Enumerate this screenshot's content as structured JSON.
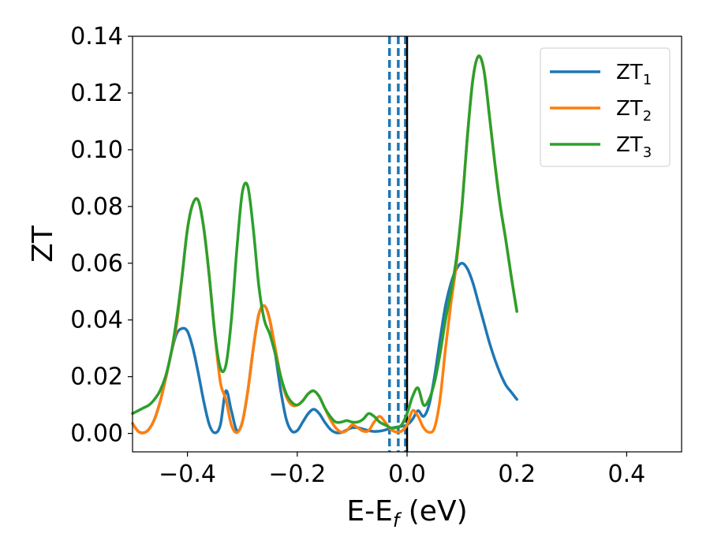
{
  "chart_data": {
    "type": "line",
    "title": "",
    "xlabel": "E-E",
    "xlabel_sub": "f",
    "xlabel_unit": " (eV)",
    "ylabel": "ZT",
    "xlim": [
      -0.5,
      0.5
    ],
    "ylim": [
      -0.0065,
      0.14
    ],
    "xticks": [
      -0.4,
      -0.2,
      0.0,
      0.2,
      0.4
    ],
    "xtick_labels": [
      "−0.4",
      "−0.2",
      "0.0",
      "0.2",
      "0.4"
    ],
    "yticks": [
      0.0,
      0.02,
      0.04,
      0.06,
      0.08,
      0.1,
      0.12,
      0.14
    ],
    "ytick_labels": [
      "0.00",
      "0.02",
      "0.04",
      "0.06",
      "0.08",
      "0.10",
      "0.12",
      "0.14"
    ],
    "legend_position": "top-right",
    "grid": false,
    "series": [
      {
        "name": "ZT",
        "name_sub": "1",
        "color": "#1f77b4",
        "x": [
          -0.5,
          -0.49,
          -0.48,
          -0.47,
          -0.46,
          -0.45,
          -0.44,
          -0.43,
          -0.42,
          -0.41,
          -0.4,
          -0.39,
          -0.38,
          -0.37,
          -0.36,
          -0.35,
          -0.34,
          -0.33,
          -0.32,
          -0.31,
          -0.3,
          -0.29,
          -0.28,
          -0.27,
          -0.26,
          -0.25,
          -0.24,
          -0.23,
          -0.22,
          -0.21,
          -0.2,
          -0.19,
          -0.18,
          -0.17,
          -0.16,
          -0.15,
          -0.14,
          -0.13,
          -0.12,
          -0.11,
          -0.1,
          -0.09,
          -0.08,
          -0.07,
          -0.06,
          -0.05,
          -0.04,
          -0.03,
          -0.02,
          -0.01,
          0.0,
          0.01,
          0.02,
          0.03,
          0.04,
          0.05,
          0.06,
          0.07,
          0.08,
          0.09,
          0.1,
          0.11,
          0.12,
          0.13,
          0.14,
          0.15,
          0.16,
          0.17,
          0.18,
          0.19,
          0.2
        ],
        "values": [
          0.0035,
          0.0008,
          0.0002,
          0.0015,
          0.005,
          0.011,
          0.019,
          0.028,
          0.035,
          0.037,
          0.036,
          0.03,
          0.021,
          0.011,
          0.003,
          0.0002,
          0.003,
          0.015,
          0.008,
          0.001,
          0.004,
          0.015,
          0.03,
          0.042,
          0.045,
          0.04,
          0.028,
          0.015,
          0.005,
          0.0008,
          0.001,
          0.004,
          0.007,
          0.0085,
          0.007,
          0.004,
          0.0015,
          0.0003,
          0.0003,
          0.0012,
          0.002,
          0.002,
          0.0015,
          0.001,
          0.0007,
          0.0008,
          0.0012,
          0.0018,
          0.0022,
          0.0025,
          0.003,
          0.005,
          0.008,
          0.006,
          0.01,
          0.02,
          0.033,
          0.045,
          0.053,
          0.058,
          0.06,
          0.058,
          0.053,
          0.046,
          0.039,
          0.032,
          0.026,
          0.021,
          0.017,
          0.0145,
          0.012
        ]
      },
      {
        "name": "ZT",
        "name_sub": "2",
        "color": "#ff7f0e",
        "x": [
          -0.5,
          -0.49,
          -0.48,
          -0.47,
          -0.46,
          -0.45,
          -0.44,
          -0.43,
          -0.42,
          -0.41,
          -0.4,
          -0.39,
          -0.38,
          -0.37,
          -0.36,
          -0.35,
          -0.34,
          -0.33,
          -0.32,
          -0.31,
          -0.3,
          -0.29,
          -0.28,
          -0.27,
          -0.26,
          -0.25,
          -0.24,
          -0.23,
          -0.22,
          -0.21,
          -0.2,
          -0.19,
          -0.18,
          -0.17,
          -0.16,
          -0.15,
          -0.14,
          -0.13,
          -0.12,
          -0.11,
          -0.1,
          -0.09,
          -0.08,
          -0.07,
          -0.06,
          -0.05,
          -0.04,
          -0.03,
          -0.02,
          -0.01,
          0.0,
          0.01,
          0.02,
          0.03,
          0.04,
          0.05,
          0.06,
          0.07,
          0.08,
          0.09,
          0.1,
          0.11,
          0.12,
          0.13,
          0.14,
          0.15,
          0.16,
          0.17,
          0.18,
          0.19,
          0.2
        ],
        "values": [
          0.0035,
          0.0008,
          0.0002,
          0.0015,
          0.005,
          0.011,
          0.019,
          0.028,
          0.038,
          0.055,
          0.072,
          0.081,
          0.082,
          0.072,
          0.055,
          0.035,
          0.018,
          0.012,
          0.003,
          0.0003,
          0.004,
          0.015,
          0.03,
          0.042,
          0.045,
          0.04,
          0.03,
          0.02,
          0.013,
          0.01,
          0.01,
          0.0115,
          0.014,
          0.015,
          0.013,
          0.009,
          0.005,
          0.002,
          0.0005,
          0.001,
          0.003,
          0.002,
          0.0008,
          0.001,
          0.004,
          0.006,
          0.004,
          0.0015,
          0.0005,
          0.0008,
          0.003,
          0.008,
          0.006,
          0.002,
          0.0004,
          0.002,
          0.012,
          0.03,
          0.046,
          0.06,
          0.08,
          0.105,
          0.125,
          0.133,
          0.128,
          0.112,
          0.095,
          0.08,
          0.068,
          0.055,
          0.043
        ]
      },
      {
        "name": "ZT",
        "name_sub": "3",
        "color": "#2ca02c",
        "x": [
          -0.5,
          -0.49,
          -0.48,
          -0.47,
          -0.46,
          -0.45,
          -0.44,
          -0.43,
          -0.42,
          -0.41,
          -0.4,
          -0.39,
          -0.38,
          -0.37,
          -0.36,
          -0.35,
          -0.34,
          -0.33,
          -0.32,
          -0.31,
          -0.3,
          -0.29,
          -0.28,
          -0.27,
          -0.26,
          -0.25,
          -0.24,
          -0.23,
          -0.22,
          -0.21,
          -0.2,
          -0.19,
          -0.18,
          -0.17,
          -0.16,
          -0.15,
          -0.14,
          -0.13,
          -0.12,
          -0.11,
          -0.1,
          -0.09,
          -0.08,
          -0.07,
          -0.06,
          -0.05,
          -0.04,
          -0.03,
          -0.02,
          -0.01,
          0.0,
          0.01,
          0.02,
          0.03,
          0.04,
          0.05,
          0.06,
          0.07,
          0.08,
          0.09,
          0.1,
          0.11,
          0.12,
          0.13,
          0.14,
          0.15,
          0.16,
          0.17,
          0.18,
          0.19,
          0.2
        ],
        "values": [
          0.007,
          0.008,
          0.009,
          0.01,
          0.012,
          0.015,
          0.02,
          0.028,
          0.04,
          0.055,
          0.072,
          0.081,
          0.082,
          0.072,
          0.055,
          0.035,
          0.023,
          0.024,
          0.04,
          0.065,
          0.085,
          0.087,
          0.072,
          0.052,
          0.04,
          0.035,
          0.028,
          0.02,
          0.014,
          0.011,
          0.01,
          0.0115,
          0.014,
          0.015,
          0.013,
          0.009,
          0.006,
          0.004,
          0.004,
          0.0045,
          0.004,
          0.004,
          0.005,
          0.007,
          0.006,
          0.004,
          0.003,
          0.002,
          0.002,
          0.003,
          0.007,
          0.013,
          0.016,
          0.01,
          0.012,
          0.018,
          0.028,
          0.04,
          0.05,
          0.062,
          0.08,
          0.105,
          0.125,
          0.133,
          0.128,
          0.112,
          0.095,
          0.08,
          0.068,
          0.055,
          0.043
        ]
      }
    ],
    "vlines": [
      {
        "x": -0.032,
        "style": "dashed",
        "color": "#1f77b4"
      },
      {
        "x": -0.016,
        "style": "dashed",
        "color": "#1f77b4"
      },
      {
        "x": -0.003,
        "style": "dashed",
        "color": "#1f77b4"
      },
      {
        "x": 0.0,
        "style": "solid",
        "color": "#000000"
      }
    ]
  }
}
